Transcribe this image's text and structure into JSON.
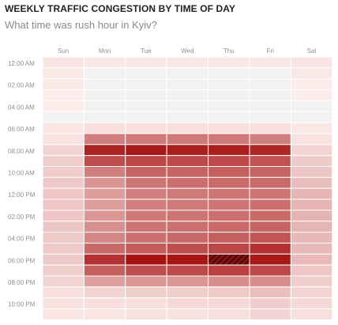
{
  "title": "WEEKLY TRAFFIC CONGESTION BY TIME OF DAY",
  "subtitle": "What time was rush hour in Kyiv?",
  "chart_data": {
    "type": "heatmap",
    "title": "WEEKLY TRAFFIC CONGESTION BY TIME OF DAY",
    "subtitle": "What time was rush hour in Kyiv?",
    "x_categories": [
      "Sun",
      "Mon",
      "Tue",
      "Wed",
      "Thu",
      "Fri",
      "Sat"
    ],
    "y_tick_labels": [
      "12:00 AM",
      "02:00 AM",
      "04:00 AM",
      "06:00 AM",
      "08:00 AM",
      "10:00 AM",
      "12:00 PM",
      "02:00 PM",
      "04:00 PM",
      "06:00 PM",
      "08:00 PM",
      "10:00 PM"
    ],
    "y_hours": [
      0,
      1,
      2,
      3,
      4,
      5,
      6,
      7,
      8,
      9,
      10,
      11,
      12,
      13,
      14,
      15,
      16,
      17,
      18,
      19,
      20,
      21,
      22,
      23
    ],
    "values": [
      [
        0.04,
        0.03,
        0.03,
        0.03,
        0.03,
        0.03,
        0.04
      ],
      [
        0.03,
        0,
        0,
        0,
        0,
        0,
        0.03
      ],
      [
        0.03,
        0,
        0,
        0,
        0,
        0,
        0.02
      ],
      [
        0.02,
        0,
        0,
        0,
        0,
        0,
        0.02
      ],
      [
        0.02,
        0,
        0,
        0,
        0,
        0,
        0
      ],
      [
        0,
        0,
        0,
        0,
        0,
        0,
        0
      ],
      [
        0.04,
        0.06,
        0.06,
        0.06,
        0.06,
        0.06,
        0.03
      ],
      [
        0.05,
        0.45,
        0.48,
        0.48,
        0.48,
        0.45,
        0.05
      ],
      [
        0.1,
        0.9,
        0.95,
        0.92,
        0.92,
        0.88,
        0.1
      ],
      [
        0.12,
        0.68,
        0.72,
        0.7,
        0.7,
        0.66,
        0.13
      ],
      [
        0.13,
        0.45,
        0.58,
        0.58,
        0.6,
        0.58,
        0.15
      ],
      [
        0.14,
        0.35,
        0.5,
        0.52,
        0.55,
        0.55,
        0.18
      ],
      [
        0.15,
        0.32,
        0.45,
        0.48,
        0.5,
        0.5,
        0.22
      ],
      [
        0.15,
        0.32,
        0.45,
        0.48,
        0.5,
        0.52,
        0.22
      ],
      [
        0.15,
        0.35,
        0.48,
        0.5,
        0.52,
        0.55,
        0.22
      ],
      [
        0.15,
        0.38,
        0.5,
        0.52,
        0.55,
        0.58,
        0.22
      ],
      [
        0.14,
        0.42,
        0.52,
        0.55,
        0.6,
        0.65,
        0.2
      ],
      [
        0.14,
        0.55,
        0.62,
        0.68,
        0.72,
        0.82,
        0.2
      ],
      [
        0.14,
        0.82,
        0.98,
        0.97,
        1,
        0.95,
        0.2
      ],
      [
        0.12,
        0.6,
        0.68,
        0.7,
        0.75,
        0.7,
        0.15
      ],
      [
        0.1,
        0.3,
        0.35,
        0.35,
        0.38,
        0.38,
        0.12
      ],
      [
        0.06,
        0.1,
        0.12,
        0.12,
        0.14,
        0.18,
        0.1
      ],
      [
        0.05,
        0.06,
        0.06,
        0.08,
        0.08,
        0.12,
        0.08
      ],
      [
        0.04,
        0.04,
        0.05,
        0.05,
        0.06,
        0.1,
        0.06
      ]
    ],
    "hatched_cells": [
      {
        "day": "Thu",
        "hour": 18
      }
    ],
    "colors": {
      "scale_low": "#fff4f2",
      "scale_high": "#a50e0e",
      "no_data": "#f2f2f2",
      "hatch": "#2a0606"
    },
    "grid": false,
    "legend": "none"
  }
}
